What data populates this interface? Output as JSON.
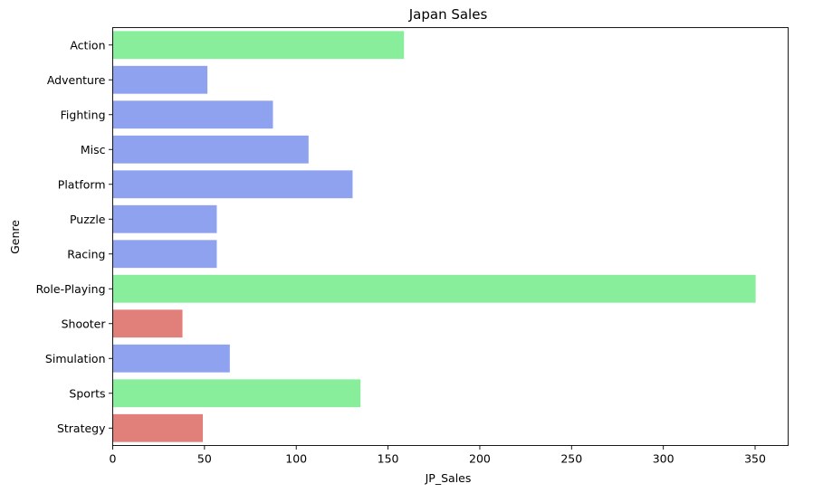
{
  "chart_data": {
    "type": "bar",
    "orientation": "horizontal",
    "title": "Japan Sales",
    "xlabel": "JP_Sales",
    "ylabel": "Genre",
    "xlim": [
      0,
      368
    ],
    "xticks": [
      0,
      50,
      100,
      150,
      200,
      250,
      300,
      350
    ],
    "grid": false,
    "categories": [
      "Action",
      "Adventure",
      "Fighting",
      "Misc",
      "Platform",
      "Puzzle",
      "Racing",
      "Role-Playing",
      "Shooter",
      "Simulation",
      "Sports",
      "Strategy"
    ],
    "values": [
      158.7,
      51.6,
      87.3,
      106.7,
      130.7,
      56.7,
      56.7,
      350.3,
      38.0,
      63.8,
      135.0,
      49.1
    ],
    "colors": [
      "#88ee9b",
      "#8ea2ef",
      "#8ea2ef",
      "#8ea2ef",
      "#8ea2ef",
      "#8ea2ef",
      "#8ea2ef",
      "#88ee9b",
      "#e17f7b",
      "#8ea2ef",
      "#88ee9b",
      "#e17f7b"
    ]
  }
}
